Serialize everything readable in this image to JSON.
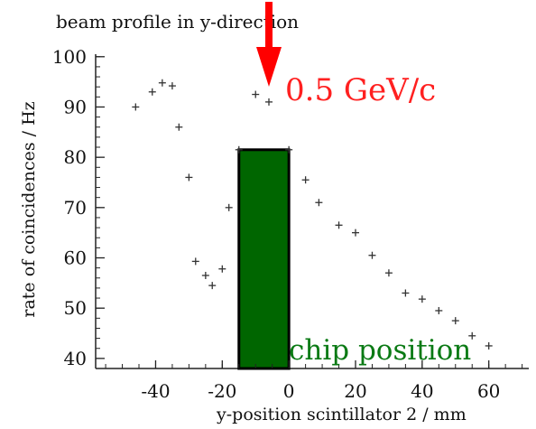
{
  "chart_data": {
    "type": "scatter",
    "title": "beam profile in y-direction",
    "xlabel": "y-position scintillator 2 / mm",
    "ylabel": "rate of coincidences / Hz",
    "xlim": [
      -58,
      72
    ],
    "ylim": [
      38,
      100.5
    ],
    "xticks": [
      -40,
      -20,
      0,
      20,
      40,
      60
    ],
    "yticks": [
      40,
      50,
      60,
      70,
      80,
      90,
      100
    ],
    "grid": false,
    "series": [
      {
        "points": [
          {
            "x": -46,
            "y": 90
          },
          {
            "x": -41,
            "y": 93
          },
          {
            "x": -38,
            "y": 94.8
          },
          {
            "x": -35,
            "y": 94.2
          },
          {
            "x": -33,
            "y": 86
          },
          {
            "x": -30,
            "y": 76
          },
          {
            "x": -28,
            "y": 59.3
          },
          {
            "x": -25,
            "y": 56.5
          },
          {
            "x": -23,
            "y": 54.5
          },
          {
            "x": -20,
            "y": 57.8
          },
          {
            "x": -18,
            "y": 70
          },
          {
            "x": -15,
            "y": 81.5
          },
          {
            "x": -10,
            "y": 92.5
          },
          {
            "x": -6,
            "y": 91
          },
          {
            "x": 0,
            "y": 81.5
          },
          {
            "x": 5,
            "y": 75.5
          },
          {
            "x": 9,
            "y": 71
          },
          {
            "x": 15,
            "y": 66.5
          },
          {
            "x": 20,
            "y": 65
          },
          {
            "x": 25,
            "y": 60.5
          },
          {
            "x": 30,
            "y": 57
          },
          {
            "x": 35,
            "y": 53
          },
          {
            "x": 40,
            "y": 51.8
          },
          {
            "x": 45,
            "y": 49.5
          },
          {
            "x": 50,
            "y": 47.5
          },
          {
            "x": 55,
            "y": 44.5
          },
          {
            "x": 60,
            "y": 42.5
          }
        ]
      }
    ],
    "chip_region": {
      "x_start": -15,
      "x_end": 0,
      "y_top": 81.5,
      "color": "#006600"
    },
    "annotations": [
      {
        "text": "0.5 GeV/c",
        "color": "#ff2020"
      },
      {
        "text": "chip position",
        "color": "#0a7a14"
      }
    ],
    "arrow": {
      "x": -6,
      "color": "#ff0000"
    }
  }
}
